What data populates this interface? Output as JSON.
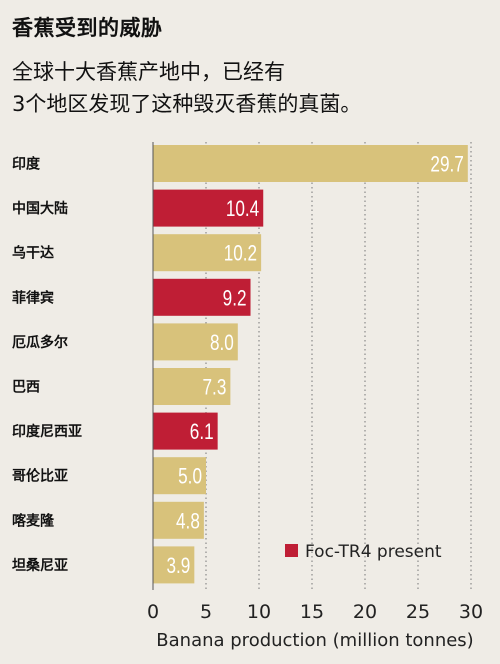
{
  "title": "香蕉受到的威胁",
  "subtitle_lines": [
    "全球十大香蕉产地中，已经有",
    "3个地区发现了这种毁灭香蕉的真菌。"
  ],
  "colors": {
    "background": "#efece6",
    "bar_default": "#d8c27b",
    "bar_highlight": "#bf1e35",
    "label_text_default": "#ffffff",
    "gridline": "#8a8a8a"
  },
  "chart_data": {
    "type": "bar",
    "orientation": "horizontal",
    "categories": [
      "印度",
      "中国大陆",
      "乌干达",
      "菲律宾",
      "厄瓜多尔",
      "巴西",
      "印度尼西亚",
      "哥伦比亚",
      "喀麦隆",
      "坦桑尼亚"
    ],
    "values": [
      29.7,
      10.4,
      10.2,
      9.2,
      8.0,
      7.3,
      6.1,
      5.0,
      4.8,
      3.9
    ],
    "value_labels": [
      "29.7",
      "10.4",
      "10.2",
      "9.2",
      "8.0",
      "7.3",
      "6.1",
      "5.0",
      "4.8",
      "3.9"
    ],
    "foc_tr4_present": [
      false,
      true,
      false,
      true,
      false,
      false,
      true,
      false,
      false,
      false
    ],
    "xlim": [
      0,
      30
    ],
    "xticks": [
      0,
      5,
      10,
      15,
      20,
      25,
      30
    ],
    "xtick_labels": [
      "0",
      "5",
      "10",
      "15",
      "20",
      "25",
      "30"
    ],
    "xlabel": "Banana production (million tonnes)",
    "ylabel": "",
    "grid": "vertical dotted",
    "legend": {
      "entries": [
        {
          "label": "Foc-TR4 present",
          "color": "#bf1e35"
        }
      ],
      "position": "bottom-right"
    }
  }
}
